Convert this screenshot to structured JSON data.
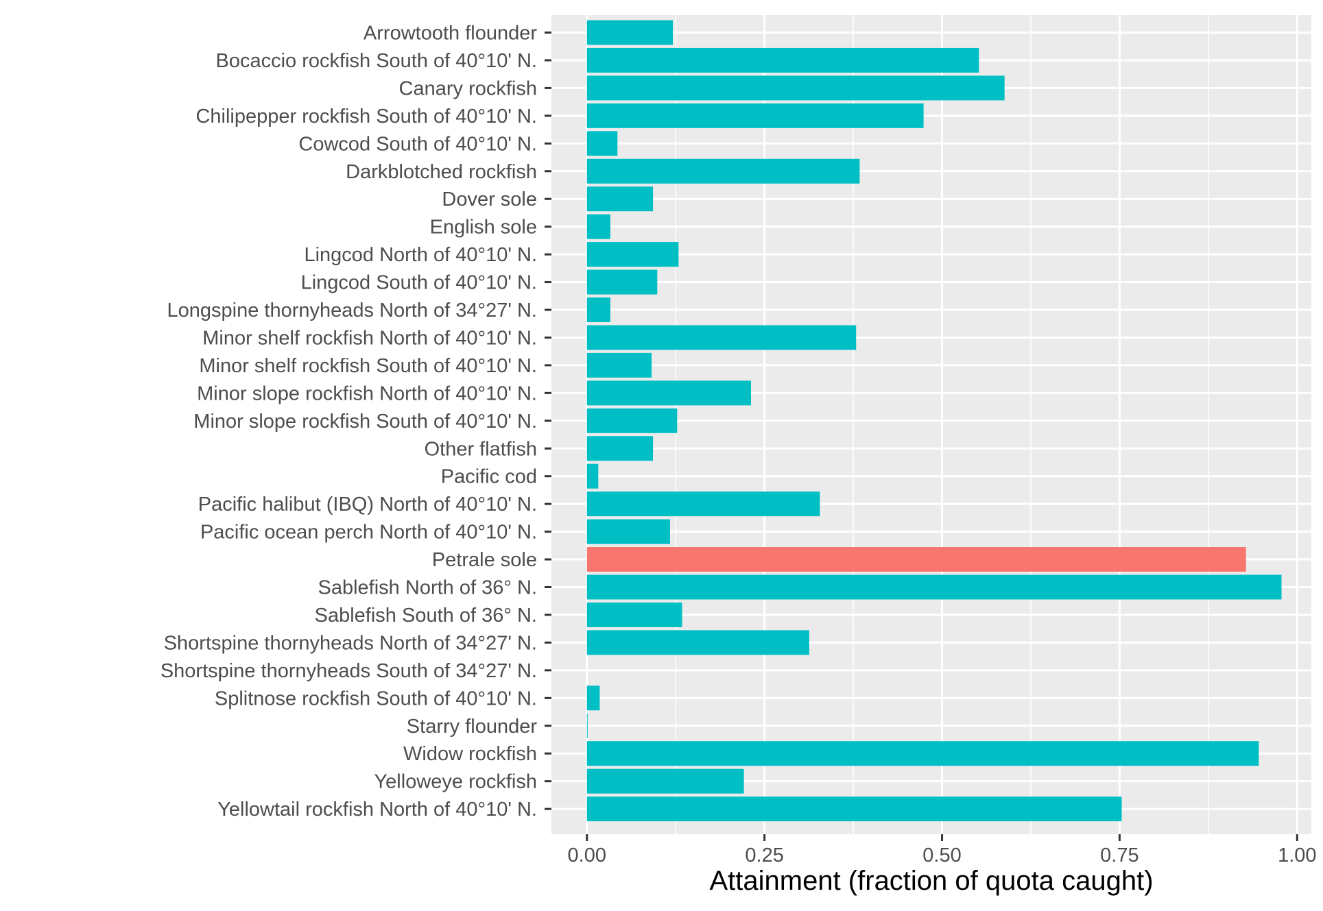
{
  "chart_data": {
    "type": "bar",
    "orientation": "horizontal",
    "xlabel": "Attainment (fraction of quota caught)",
    "ylabel": "",
    "xlim": [
      -0.05,
      1.02
    ],
    "x_ticks": [
      0,
      0.25,
      0.5,
      0.75,
      1.0
    ],
    "x_tick_labels": [
      "0.00",
      "0.25",
      "0.50",
      "0.75",
      "1.00"
    ],
    "grid": true,
    "colors": {
      "default": "#00bfc4",
      "highlight": "#f8766d",
      "panel": "#ebebeb",
      "grid": "#ffffff"
    },
    "categories": [
      "Arrowtooth flounder",
      "Bocaccio rockfish South of 40°10' N.",
      "Canary rockfish",
      "Chilipepper rockfish South of 40°10' N.",
      "Cowcod South of 40°10' N.",
      "Darkblotched rockfish",
      "Dover sole",
      "English sole",
      "Lingcod North of 40°10' N.",
      "Lingcod South of 40°10' N.",
      "Longspine thornyheads North of 34°27' N.",
      "Minor shelf rockfish North of 40°10' N.",
      "Minor shelf rockfish South of 40°10' N.",
      "Minor slope rockfish North of 40°10' N.",
      "Minor slope rockfish South of 40°10' N.",
      "Other flatfish",
      "Pacific cod",
      "Pacific halibut (IBQ) North of 40°10' N.",
      "Pacific ocean perch North of 40°10' N.",
      "Petrale sole",
      "Sablefish North of 36° N.",
      "Sablefish South of 36° N.",
      "Shortspine thornyheads North of 34°27' N.",
      "Shortspine thornyheads South of 34°27' N.",
      "Splitnose rockfish South of 40°10' N.",
      "Starry flounder",
      "Widow rockfish",
      "Yelloweye rockfish",
      "Yellowtail rockfish North of 40°10' N."
    ],
    "values": [
      0.121,
      0.552,
      0.588,
      0.474,
      0.043,
      0.384,
      0.093,
      0.033,
      0.129,
      0.099,
      0.033,
      0.379,
      0.091,
      0.231,
      0.127,
      0.093,
      0.016,
      0.328,
      0.117,
      0.928,
      0.978,
      0.134,
      0.313,
      0.0,
      0.018,
      0.001,
      0.946,
      0.221,
      0.753
    ],
    "highlight": [
      "Petrale sole"
    ]
  }
}
